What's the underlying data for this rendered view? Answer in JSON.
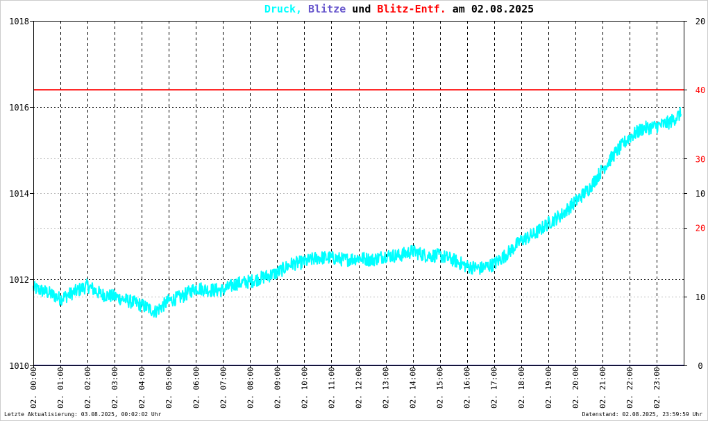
{
  "chart_data": {
    "type": "line",
    "title": {
      "parts": [
        {
          "text": "Druck,",
          "color": "#00ffff"
        },
        {
          "text": "Blitze",
          "color": "#6655cc"
        },
        {
          "text": "und",
          "color": "#000000"
        },
        {
          "text": "Blitz-Entf.",
          "color": "#ff0000"
        },
        {
          "text": "am 02.08.2025",
          "color": "#000000"
        }
      ]
    },
    "x_tick_labels": [
      "02. 00:00",
      "02. 01:00",
      "02. 02:00",
      "02. 03:00",
      "02. 04:00",
      "02. 05:00",
      "02. 06:00",
      "02. 07:00",
      "02. 08:00",
      "02. 09:00",
      "02. 10:00",
      "02. 11:00",
      "02. 12:00",
      "02. 13:00",
      "02. 14:00",
      "02. 15:00",
      "02. 16:00",
      "02. 17:00",
      "02. 18:00",
      "02. 19:00",
      "02. 20:00",
      "02. 21:00",
      "02. 22:00",
      "02. 23:00"
    ],
    "xlim_hours": [
      0,
      24
    ],
    "y_left": {
      "ticks": [
        "1010",
        "1012",
        "1014",
        "1016",
        "1018"
      ],
      "ylim": [
        1010,
        1018
      ]
    },
    "y_right": {
      "ticks": [
        {
          "label": "0",
          "at_left": 1010,
          "color": "#000000"
        },
        {
          "label": "10",
          "at_left": 1011.6,
          "color": "#000000"
        },
        {
          "label": "20",
          "at_left": 1013.2,
          "color": "#ff0000"
        },
        {
          "label": "10",
          "at_left": 1014,
          "color": "#000000"
        },
        {
          "label": "30",
          "at_left": 1014.8,
          "color": "#ff0000"
        },
        {
          "label": "40",
          "at_left": 1016.4,
          "color": "#ff0000"
        },
        {
          "label": "20",
          "at_left": 1018,
          "color": "#000000"
        }
      ]
    },
    "grid": true,
    "series": [
      {
        "name": "Druck",
        "color": "#00ffff",
        "x": [
          0,
          0.5,
          1,
          1.5,
          2,
          2.5,
          3,
          3.5,
          4,
          4.5,
          5,
          5.5,
          6,
          6.5,
          7,
          7.5,
          8,
          8.5,
          9,
          9.5,
          10,
          10.5,
          11,
          11.5,
          12,
          12.5,
          13,
          13.5,
          14,
          14.5,
          15,
          15.5,
          16,
          16.5,
          17,
          17.5,
          18,
          18.5,
          19,
          19.5,
          20,
          20.5,
          21,
          21.5,
          22,
          22.5,
          23,
          23.5,
          23.9
        ],
        "y": [
          1011.8,
          1011.7,
          1011.55,
          1011.7,
          1011.85,
          1011.65,
          1011.6,
          1011.5,
          1011.4,
          1011.25,
          1011.5,
          1011.6,
          1011.8,
          1011.75,
          1011.75,
          1011.9,
          1011.95,
          1012.05,
          1012.15,
          1012.35,
          1012.4,
          1012.5,
          1012.5,
          1012.45,
          1012.5,
          1012.45,
          1012.55,
          1012.55,
          1012.65,
          1012.55,
          1012.55,
          1012.45,
          1012.3,
          1012.25,
          1012.35,
          1012.6,
          1012.9,
          1013.05,
          1013.3,
          1013.5,
          1013.8,
          1014.1,
          1014.55,
          1014.95,
          1015.3,
          1015.5,
          1015.55,
          1015.65,
          1015.85
        ]
      },
      {
        "name": "Blitz-Entf.",
        "color": "#ff0000",
        "x": [
          0,
          24
        ],
        "y": [
          1016.4,
          1016.4
        ]
      },
      {
        "name": "Blitze",
        "color": "#333399",
        "x": [
          0,
          24
        ],
        "y": [
          1010,
          1010
        ]
      }
    ]
  },
  "footer": {
    "left": "Letzte Aktualisierung: 03.08.2025, 00:02:02 Uhr",
    "right": "Datenstand: 02.08.2025, 23:59:59 Uhr"
  }
}
